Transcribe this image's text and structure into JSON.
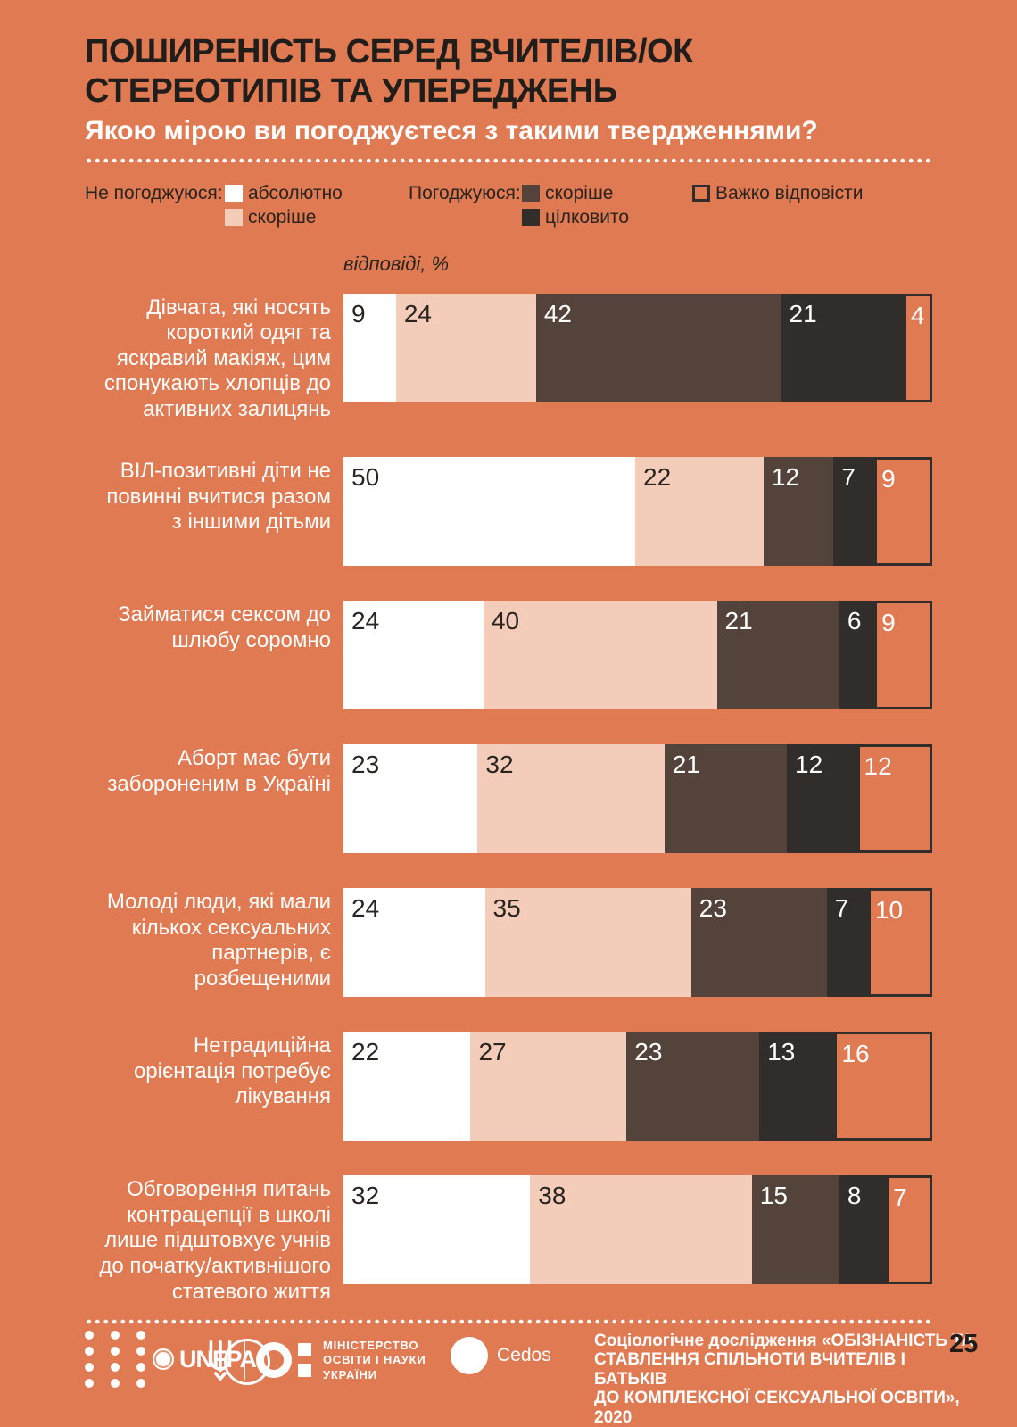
{
  "page": {
    "background_color": "#E07A52",
    "text_dark": "#29241F",
    "number": "25"
  },
  "header": {
    "title": "ПОШИРЕНІСТЬ СЕРЕД ВЧИТЕЛІВ/ОК\nСТЕРЕОТИПІВ ТА УПЕРЕДЖЕНЬ",
    "subtitle": "Якою мірою ви погоджуєтеся з такими твердженнями?"
  },
  "legend": {
    "disagree_label": "Не погоджуюся:",
    "disagree_items": [
      {
        "label": "абсолютно",
        "series": 0
      },
      {
        "label": "скоріше",
        "series": 1
      }
    ],
    "agree_label": "Погоджуюся:",
    "agree_items": [
      {
        "label": "скоріше",
        "series": 2
      },
      {
        "label": "цілковито",
        "series": 3
      }
    ],
    "hard_item": {
      "label": "Важко відповісти",
      "series": 4
    }
  },
  "chart_data": {
    "type": "bar",
    "stacked": true,
    "orientation": "horizontal",
    "axis_label": "відповіді, %",
    "unit": "%",
    "xlim": [
      0,
      100
    ],
    "categories": [
      "Дівчата, які носять\nкороткий одяг та\nяскравий макіяж, цим\nспонукають хлопців до\nактивних залицянь",
      "ВІЛ-позитивні діти не\nповинні вчитися разом\nз іншими дітьми",
      "Займатися сексом до\nшлюбу соромно",
      "Аборт має бути\nзабороненим в Україні",
      "Молоді люди, які мали\nкількох сексуальних\nпартнерів, є\nрозбещеними",
      "Нетрадиційна\nорієнтація потребує\nлікування",
      "Обговорення питань\nконтрацепції в школі\nлише підштовхує учнів\nдо початку/активнішого\nстатевого життя"
    ],
    "series": [
      {
        "name": "Не погоджуюся: абсолютно",
        "color": "#FFFFFF",
        "number_color": "#29241F",
        "values": [
          9,
          50,
          24,
          23,
          24,
          22,
          32
        ]
      },
      {
        "name": "Не погоджуюся: скоріше",
        "color": "#F4CDBA",
        "number_color": "#29241F",
        "values": [
          24,
          22,
          40,
          32,
          35,
          27,
          38
        ]
      },
      {
        "name": "Погоджуюся: скоріше",
        "color": "#54433A",
        "number_color": "#FFFFFF",
        "values": [
          42,
          12,
          21,
          21,
          23,
          23,
          15
        ]
      },
      {
        "name": "Погоджуюся: цілковито",
        "color": "#312D2B",
        "number_color": "#FFFFFF",
        "values": [
          21,
          7,
          6,
          12,
          7,
          13,
          8
        ]
      },
      {
        "name": "Важко відповісти",
        "color": "outline",
        "border_color": "#312D2B",
        "number_color": "#FFFFFF",
        "values": [
          4,
          9,
          9,
          12,
          10,
          16,
          7
        ]
      }
    ]
  },
  "footer": {
    "source": "Соціологічне дослідження «ОБІЗНАНІСТЬ ТА\nСТАВЛЕННЯ СПІЛЬНОТИ ВЧИТЕЛІВ І БАТЬКІВ\nДО КОМПЛЕКСНОЇ СЕКСУАЛЬНОЇ ОСВІТИ», 2020",
    "page_number": "25",
    "logos": {
      "unfpa": "UNFPA",
      "ministry": "МІНІСТЕРСТВО\nОСВІТИ І НАУКИ\nУКРАЇНИ",
      "cedos": "Cedos"
    }
  }
}
